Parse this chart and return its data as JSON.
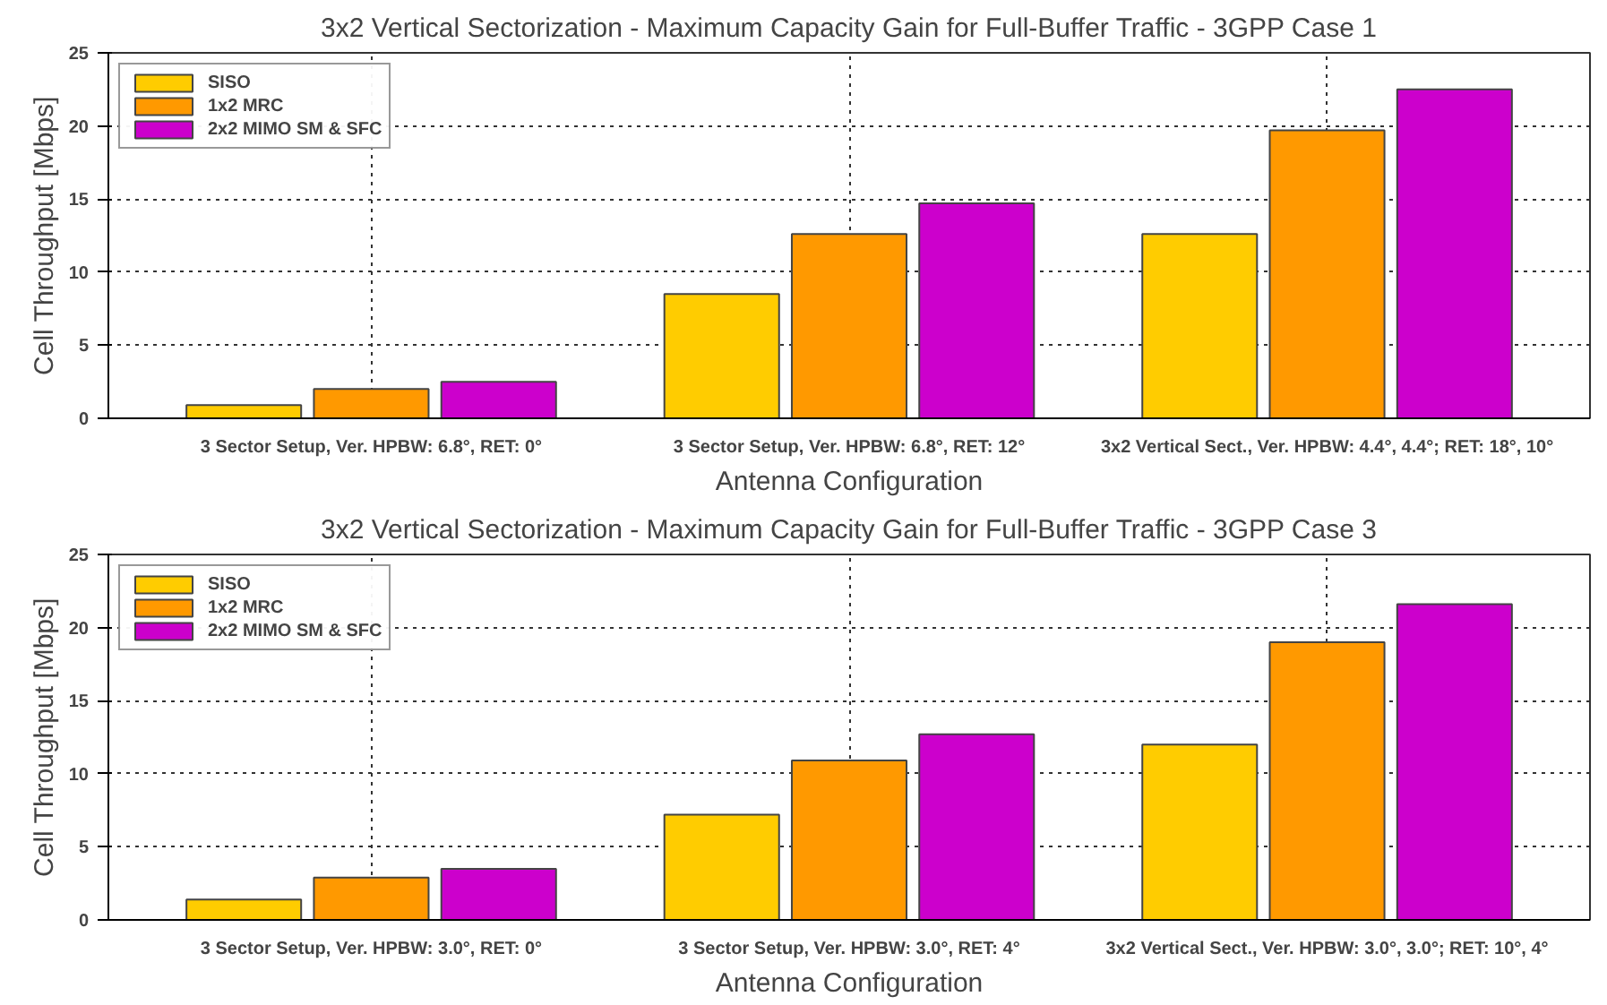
{
  "chart_data": [
    {
      "type": "bar",
      "title": "3x2 Vertical Sectorization - Maximum Capacity Gain for Full-Buffer Traffic - 3GPP Case 1",
      "xlabel": "Antenna Configuration",
      "ylabel": "Cell Throughput [Mbps]",
      "categories": [
        "3 Sector Setup, Ver. HPBW: 6.8°, RET: 0°",
        "3 Sector Setup, Ver. HPBW: 6.8°, RET: 12°",
        "3x2 Vertical Sect., Ver. HPBW: 4.4°, 4.4°; RET: 18°, 10°"
      ],
      "series": [
        {
          "name": "SISO",
          "color": "#ffcc00",
          "values": [
            0.9,
            8.5,
            12.6
          ]
        },
        {
          "name": "1x2 MRC",
          "color": "#ff9900",
          "values": [
            2.0,
            12.6,
            19.7
          ]
        },
        {
          "name": "2x2 MIMO SM & SFC",
          "color": "#cc00cc",
          "values": [
            2.5,
            14.7,
            22.5
          ]
        }
      ],
      "ylim": [
        0,
        25
      ],
      "yticks": [
        0,
        5,
        10,
        15,
        20,
        25
      ],
      "grid": true,
      "legend": "top left"
    },
    {
      "type": "bar",
      "title": "3x2 Vertical Sectorization - Maximum Capacity Gain for Full-Buffer Traffic - 3GPP Case 3",
      "xlabel": "Antenna Configuration",
      "ylabel": "Cell Throughput [Mbps]",
      "categories": [
        "3 Sector Setup, Ver. HPBW: 3.0°, RET: 0°",
        "3 Sector Setup, Ver. HPBW: 3.0°, RET: 4°",
        "3x2 Vertical Sect., Ver. HPBW: 3.0°, 3.0°; RET: 10°, 4°"
      ],
      "series": [
        {
          "name": "SISO",
          "color": "#ffcc00",
          "values": [
            1.4,
            7.2,
            12.0
          ]
        },
        {
          "name": "1x2 MRC",
          "color": "#ff9900",
          "values": [
            2.9,
            10.9,
            19.0
          ]
        },
        {
          "name": "2x2 MIMO SM & SFC",
          "color": "#cc00cc",
          "values": [
            3.5,
            12.7,
            21.6
          ]
        }
      ],
      "ylim": [
        0,
        25
      ],
      "yticks": [
        0,
        5,
        10,
        15,
        20,
        25
      ],
      "grid": true,
      "legend": "top left"
    }
  ]
}
